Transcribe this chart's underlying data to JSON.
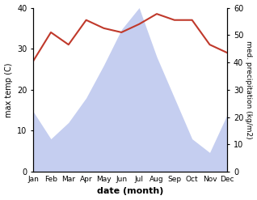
{
  "months": [
    "Jan",
    "Feb",
    "Mar",
    "Apr",
    "May",
    "Jun",
    "Jul",
    "Aug",
    "Sep",
    "Oct",
    "Nov",
    "Dec"
  ],
  "month_x": [
    1,
    2,
    3,
    4,
    5,
    6,
    7,
    8,
    9,
    10,
    11,
    12
  ],
  "temperature": [
    27.0,
    34.0,
    31.0,
    37.0,
    35.0,
    34.0,
    36.0,
    38.5,
    37.0,
    37.0,
    31.0,
    29.0
  ],
  "precipitation_right": [
    22,
    12,
    18,
    27,
    39,
    52,
    60,
    42,
    27,
    12,
    7,
    21
  ],
  "temp_color": "#c0392b",
  "precip_fill_color": "#c5cef0",
  "temp_ylim": [
    0,
    40
  ],
  "precip_ylim": [
    0,
    60
  ],
  "temp_yticks": [
    0,
    10,
    20,
    30,
    40
  ],
  "precip_yticks": [
    0,
    10,
    20,
    30,
    40,
    50,
    60
  ],
  "xlabel": "date (month)",
  "ylabel_left": "max temp (C)",
  "ylabel_right": "med. precipitation (kg/m2)",
  "background_color": "#ffffff"
}
